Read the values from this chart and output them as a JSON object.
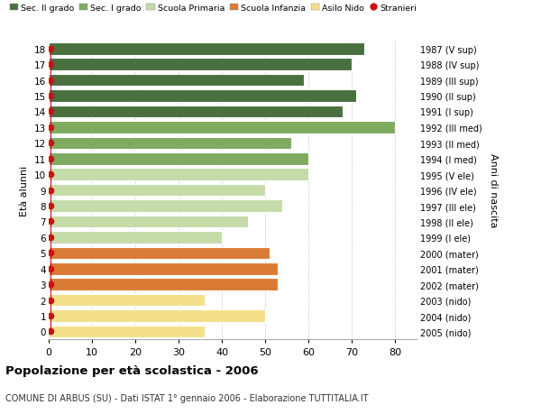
{
  "ages": [
    18,
    17,
    16,
    15,
    14,
    13,
    12,
    11,
    10,
    9,
    8,
    7,
    6,
    5,
    4,
    3,
    2,
    1,
    0
  ],
  "years": [
    "1987 (V sup)",
    "1988 (IV sup)",
    "1989 (III sup)",
    "1990 (II sup)",
    "1991 (I sup)",
    "1992 (III med)",
    "1993 (II med)",
    "1994 (I med)",
    "1995 (V ele)",
    "1996 (IV ele)",
    "1997 (III ele)",
    "1998 (II ele)",
    "1999 (I ele)",
    "2000 (mater)",
    "2001 (mater)",
    "2002 (mater)",
    "2003 (nido)",
    "2004 (nido)",
    "2005 (nido)"
  ],
  "values": [
    73,
    70,
    59,
    71,
    68,
    80,
    56,
    60,
    60,
    50,
    54,
    46,
    40,
    51,
    53,
    53,
    36,
    50,
    36
  ],
  "bar_colors": [
    "#4a7040",
    "#4a7040",
    "#4a7040",
    "#4a7040",
    "#4a7040",
    "#7faa60",
    "#7faa60",
    "#7faa60",
    "#c5dba8",
    "#c5dba8",
    "#c5dba8",
    "#c5dba8",
    "#c5dba8",
    "#d97b35",
    "#d97b35",
    "#d97b35",
    "#f5e08a",
    "#f5e08a",
    "#f5e08a"
  ],
  "legend_labels": [
    "Sec. II grado",
    "Sec. I grado",
    "Scuola Primaria",
    "Scuola Infanzia",
    "Asilo Nido",
    "Stranieri"
  ],
  "legend_colors": [
    "#4a7040",
    "#7faa60",
    "#c5dba8",
    "#d97b35",
    "#f5e08a",
    "#cc1111"
  ],
  "stranieri_color": "#cc1111",
  "title": "Popolazione per età scolastica - 2006",
  "subtitle": "COMUNE DI ARBUS (SU) - Dati ISTAT 1° gennaio 2006 - Elaborazione TUTTITALIA.IT",
  "ylabel_left": "Età alunni",
  "ylabel_right": "Anni di nascita",
  "xlim": [
    0,
    85
  ],
  "xticks": [
    0,
    10,
    20,
    30,
    40,
    50,
    60,
    70,
    80
  ],
  "background_color": "#ffffff",
  "grid_color": "#cccccc",
  "bar_height": 0.78
}
